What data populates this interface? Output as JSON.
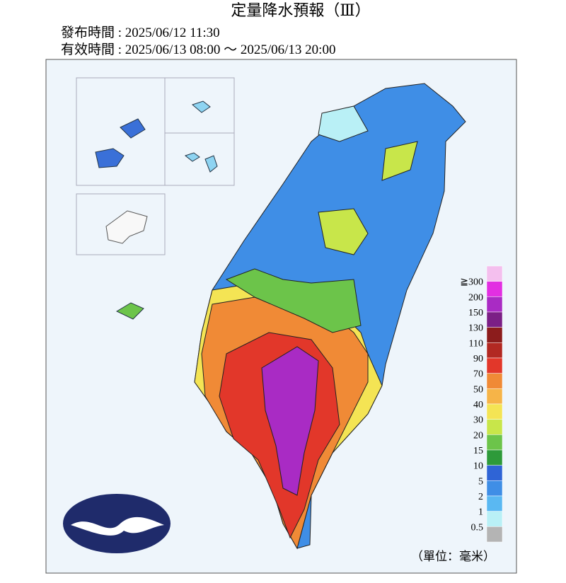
{
  "header": {
    "title": "定量降水預報（Ⅲ）",
    "issued": "發布時間 : 2025/06/12 11:30",
    "valid": "有效時間 : 2025/06/13 08:00 ～ 2025/06/13 20:00"
  },
  "legend": {
    "labels": [
      "≧300",
      "200",
      "150",
      "130",
      "110",
      "90",
      "70",
      "50",
      "40",
      "30",
      "20",
      "15",
      "10",
      "5",
      "2",
      "1",
      "0.5"
    ],
    "colors": [
      "#f4bfee",
      "#e22fe2",
      "#a92bc4",
      "#7b1f86",
      "#8c1c1c",
      "#b22822",
      "#e2372a",
      "#f08a36",
      "#f6b448",
      "#f4e454",
      "#c8e64a",
      "#6cc44a",
      "#2e9a3a",
      "#2f64d6",
      "#3f8ee6",
      "#5ab8f2",
      "#b9f0f6",
      "#b4b4b4"
    ],
    "unit": "（單位：毫米）"
  }
}
